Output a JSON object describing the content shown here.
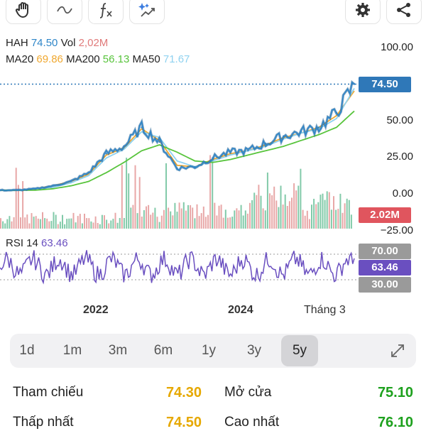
{
  "toolbar": {
    "left_icons": [
      "hand-icon",
      "wave-icon",
      "function-icon",
      "sparkle-chart-icon"
    ],
    "right_icons": [
      "gear-icon",
      "share-icon"
    ]
  },
  "legend": {
    "symbol": "HAH",
    "price": "74.50",
    "vol_label": "Vol",
    "vol_value": "2,02M",
    "ma20_label": "MA20",
    "ma20_value": "69.86",
    "ma200_label": "MA200",
    "ma200_value": "56.13",
    "ma50_label": "MA50",
    "ma50_value": "71.67",
    "rsi_label": "RSI 14",
    "rsi_value": "63.46"
  },
  "colors": {
    "price": "#2f86c8",
    "ma20": "#f0a830",
    "ma200": "#58c43c",
    "ma50": "#8fd2f0",
    "volume_up": "#58b88c",
    "volume_down": "#e08a8a",
    "rsi": "#6a4fc0",
    "tag_price": "#2f78b8",
    "tag_vol": "#e0555e",
    "tag_rsi_band": "#9a9a9a",
    "tag_rsi": "#6a4fc0",
    "green_value": "#1ea11e",
    "yellow_value": "#e6a800"
  },
  "price_axis": {
    "ticks": [
      "100.00",
      "50.00",
      "25.00",
      "0.00",
      "−25.00"
    ],
    "current_tag": "74.50"
  },
  "volume": {
    "tag": "2.02M"
  },
  "rsi_axis": {
    "upper": "70.00",
    "value": "63.46",
    "lower": "30.00"
  },
  "x_axis": {
    "labels": [
      "2022",
      "2024",
      "Tháng 3"
    ]
  },
  "ranges": {
    "items": [
      "1d",
      "1m",
      "3m",
      "6m",
      "1y",
      "3y",
      "5y"
    ],
    "active": "5y"
  },
  "stats": {
    "ref_label": "Tham chiếu",
    "ref_value": "74.30",
    "open_label": "Mở cửa",
    "open_value": "75.10",
    "low_label": "Thấp nhất",
    "low_value": "74.50",
    "high_label": "Cao nhất",
    "high_value": "76.10"
  },
  "chart_data": {
    "type": "line",
    "x": [
      "2020-04",
      "2020-07",
      "2020-10",
      "2021-01",
      "2021-04",
      "2021-07",
      "2021-10",
      "2022-01",
      "2022-04",
      "2022-07",
      "2022-10",
      "2023-01",
      "2023-04",
      "2023-07",
      "2023-10",
      "2024-01",
      "2024-04",
      "2024-07",
      "2024-10",
      "2025-01",
      "2025-03"
    ],
    "series": [
      {
        "name": "HAH",
        "values": [
          2,
          2,
          3,
          5,
          8,
          14,
          27,
          32,
          45,
          35,
          17,
          18,
          24,
          28,
          29,
          34,
          39,
          42,
          45,
          55,
          74.5
        ]
      },
      {
        "name": "MA20",
        "values": [
          2,
          2,
          3,
          5,
          8,
          13,
          26,
          31,
          44,
          36,
          19,
          18,
          23,
          27,
          29,
          33,
          38,
          41,
          45,
          53,
          69.86
        ]
      },
      {
        "name": "MA50",
        "values": [
          2,
          2,
          3,
          4,
          7,
          12,
          24,
          30,
          42,
          38,
          22,
          18,
          22,
          26,
          29,
          32,
          37,
          41,
          44,
          51,
          71.67
        ]
      },
      {
        "name": "MA200",
        "values": [
          2,
          2,
          2,
          3,
          5,
          8,
          14,
          21,
          29,
          33,
          28,
          22,
          21,
          23,
          26,
          29,
          32,
          36,
          40,
          45,
          56.13
        ]
      }
    ],
    "rsi": {
      "name": "RSI 14",
      "last": 63.46,
      "upper": 70,
      "lower": 30
    },
    "ylim": [
      -25,
      100
    ]
  }
}
